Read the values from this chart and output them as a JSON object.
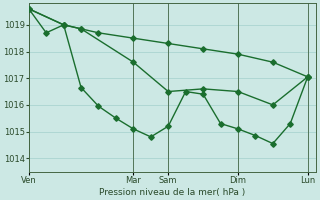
{
  "bg_color": "#cce8e4",
  "grid_color": "#aad4d0",
  "line_color": "#1a6e2e",
  "marker_color": "#1a6e2e",
  "xlabel": "Pression niveau de la mer( hPa )",
  "ylim": [
    1013.5,
    1019.8
  ],
  "yticks": [
    1014,
    1015,
    1016,
    1017,
    1018,
    1019
  ],
  "xtick_labels": [
    "Ven",
    "Mar",
    "Sam",
    "Dim",
    "Lun"
  ],
  "xtick_positions": [
    0,
    36,
    48,
    72,
    96
  ],
  "xmax": 99,
  "line1_x": [
    0,
    12,
    18,
    24,
    36,
    48,
    60,
    72,
    84,
    96
  ],
  "line1_y": [
    1019.6,
    1019.0,
    1018.85,
    1018.7,
    1018.5,
    1018.3,
    1018.1,
    1017.9,
    1017.6,
    1017.05
  ],
  "line2_x": [
    0,
    12,
    18,
    36,
    48,
    60,
    72,
    84,
    96
  ],
  "line2_y": [
    1019.6,
    1019.0,
    1018.85,
    1017.6,
    1016.5,
    1016.6,
    1016.5,
    1016.0,
    1017.05
  ],
  "line3_x": [
    0,
    6,
    12,
    18,
    24,
    30,
    36,
    42,
    48,
    54,
    60,
    66,
    72,
    78,
    84,
    90,
    96
  ],
  "line3_y": [
    1019.6,
    1018.7,
    1019.0,
    1016.65,
    1015.95,
    1015.5,
    1015.1,
    1014.8,
    1015.2,
    1016.5,
    1016.4,
    1015.3,
    1015.1,
    1014.85,
    1014.55,
    1015.3,
    1017.05
  ],
  "figsize": [
    3.2,
    2.0
  ],
  "dpi": 100
}
